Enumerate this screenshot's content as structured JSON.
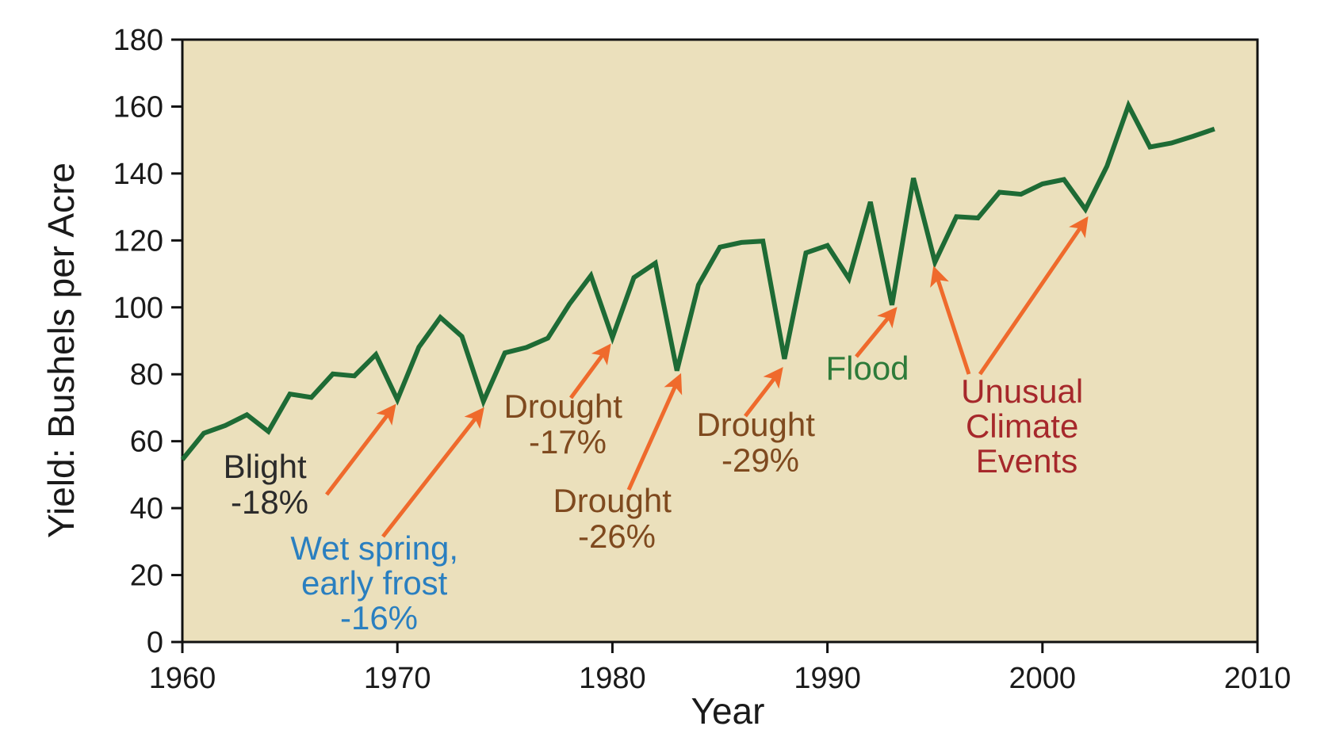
{
  "chart_data": {
    "type": "line",
    "xlabel": "Year",
    "ylabel": "Yield: Bushels per Acre",
    "xlim": [
      1960,
      2010
    ],
    "ylim": [
      0,
      180
    ],
    "xticks": [
      1960,
      1970,
      1980,
      1990,
      2000,
      2010
    ],
    "yticks": [
      0,
      20,
      40,
      60,
      80,
      100,
      120,
      140,
      160,
      180
    ],
    "grid": false,
    "series": [
      {
        "name": "",
        "x": [
          1960,
          1961,
          1962,
          1963,
          1964,
          1965,
          1966,
          1967,
          1968,
          1969,
          1970,
          1971,
          1972,
          1973,
          1974,
          1975,
          1976,
          1977,
          1978,
          1979,
          1980,
          1981,
          1982,
          1983,
          1984,
          1985,
          1986,
          1987,
          1988,
          1989,
          1990,
          1991,
          1992,
          1993,
          1994,
          1995,
          1996,
          1997,
          1998,
          1999,
          2000,
          2001,
          2002,
          2003,
          2004,
          2005,
          2006,
          2007,
          2008
        ],
        "y": [
          54.5,
          62.4,
          64.7,
          67.9,
          62.9,
          74.1,
          73.1,
          80.1,
          79.5,
          85.9,
          72.4,
          88.1,
          97.0,
          91.3,
          71.9,
          86.4,
          88.0,
          90.8,
          101.0,
          109.5,
          91.0,
          108.9,
          113.2,
          81.1,
          106.7,
          118.0,
          119.4,
          119.8,
          84.6,
          116.3,
          118.5,
          108.6,
          131.5,
          100.7,
          138.6,
          113.5,
          127.1,
          126.7,
          134.4,
          133.8,
          136.9,
          138.2,
          129.3,
          142.2,
          160.3,
          147.9,
          149.1,
          151.1,
          153.3
        ]
      }
    ],
    "colors": {
      "line": "#1e6b35",
      "plot_background": "#ebe0bc",
      "arrow": "#ef6a2c",
      "blight_text": "#2b2b2b",
      "frost_text": "#2a7fc0",
      "drought_text": "#7f4a1f",
      "flood_text": "#2e7b3a",
      "unusual_text": "#a6282b"
    },
    "annotations": [
      {
        "id": "blight",
        "lines": [
          "Blight",
          "-18%"
        ],
        "target": [
          1969.8,
          70
        ]
      },
      {
        "id": "frost",
        "lines": [
          "Wet spring,",
          "early frost",
          "-16%"
        ],
        "target": [
          1973.9,
          69
        ]
      },
      {
        "id": "drought17",
        "lines": [
          "Drought",
          "-17%"
        ],
        "target": [
          1979.8,
          88
        ]
      },
      {
        "id": "drought26",
        "lines": [
          "Drought",
          "-26%"
        ],
        "target": [
          1983.1,
          79
        ]
      },
      {
        "id": "drought29",
        "lines": [
          "Drought",
          "-29%"
        ],
        "target": [
          1987.8,
          81
        ]
      },
      {
        "id": "flood",
        "lines": [
          "Flood"
        ],
        "target": [
          1993.1,
          99
        ]
      },
      {
        "id": "unusual",
        "lines": [
          "Unusual",
          "Climate",
          "Events"
        ],
        "targets": [
          [
            1995.0,
            111
          ],
          [
            2002.0,
            126
          ]
        ]
      }
    ]
  }
}
